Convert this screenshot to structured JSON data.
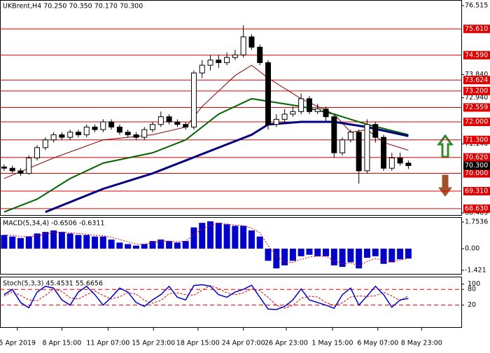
{
  "chart_data": {
    "type": "candlestick",
    "title": "UKBrent,H4  70.250 70.350 70.170 70.300",
    "xlim": [
      -0.5,
      55.5
    ],
    "xticks": [
      {
        "value": 1.6,
        "label": "5 Apr 2019"
      },
      {
        "value": 7,
        "label": "8 Apr 15:00"
      },
      {
        "value": 12.6,
        "label": "11 Apr 07:00"
      },
      {
        "value": 18.1,
        "label": "15 Apr 23:00"
      },
      {
        "value": 23.5,
        "label": "18 Apr 15:00"
      },
      {
        "value": 29,
        "label": "24 Apr 07:00"
      },
      {
        "value": 34.2,
        "label": "26 Apr 23:00"
      },
      {
        "value": 39.8,
        "label": "1 May 15:00"
      },
      {
        "value": 45.3,
        "label": "6 May 07:00"
      },
      {
        "value": 50.6,
        "label": "8 May 23:00"
      }
    ],
    "ylim": [
      68.465,
      76.515
    ],
    "yticks": [
      76.515,
      {
        "value": 73.84,
        "label": "73.840"
      },
      {
        "value": 72.94,
        "label": "72.940"
      },
      {
        "value": 71.14,
        "label": "71.140"
      },
      68.465
    ],
    "levels_color": "#e00000",
    "levels": [
      {
        "value": 75.61,
        "label": "75.610"
      },
      {
        "value": 74.59,
        "label": "74.590"
      },
      73.624,
      {
        "value": 73.2,
        "label": "73.200"
      },
      72.559,
      {
        "value": 72.0,
        "label": "72.000"
      },
      {
        "value": 71.3,
        "label": "71.300"
      },
      {
        "value": 70.62,
        "label": "70.620"
      },
      {
        "value": 70.0,
        "label": "70.000"
      },
      {
        "value": 69.31,
        "label": "69.310"
      },
      {
        "value": 68.63,
        "label": "68.630"
      }
    ],
    "last_price": {
      "value": 70.3,
      "label": "70.300"
    },
    "candles": {
      "open": [
        70.25,
        70.2,
        70.1,
        70.0,
        70.6,
        71.0,
        71.3,
        71.5,
        71.4,
        71.6,
        71.5,
        71.8,
        71.7,
        72.0,
        71.8,
        71.6,
        71.5,
        71.4,
        71.7,
        71.9,
        72.2,
        72.0,
        71.9,
        71.8,
        73.9,
        74.2,
        74.4,
        74.3,
        74.5,
        74.6,
        75.3,
        74.9,
        74.3,
        71.9,
        72.1,
        72.3,
        72.4,
        72.9,
        72.4,
        72.5,
        72.2,
        70.8,
        71.3,
        71.6,
        70.1,
        71.9,
        71.4,
        70.2,
        70.6,
        70.4
      ],
      "high": [
        70.35,
        70.3,
        70.2,
        70.7,
        71.1,
        71.4,
        71.6,
        71.6,
        71.7,
        71.7,
        71.9,
        71.9,
        72.1,
        72.1,
        71.9,
        71.7,
        71.6,
        71.8,
        72.0,
        72.4,
        72.3,
        72.1,
        72.0,
        74.0,
        74.4,
        74.6,
        74.6,
        74.7,
        74.8,
        75.75,
        75.4,
        75.0,
        74.4,
        72.3,
        72.5,
        72.6,
        73.1,
        73.0,
        72.7,
        72.6,
        72.3,
        71.4,
        71.7,
        71.7,
        72.1,
        72.0,
        71.5,
        70.8,
        70.8,
        70.5
      ],
      "low": [
        70.1,
        70.0,
        69.9,
        69.95,
        70.5,
        70.9,
        71.2,
        71.3,
        71.3,
        71.4,
        71.4,
        71.6,
        71.6,
        71.7,
        71.5,
        71.4,
        71.3,
        71.3,
        71.6,
        71.8,
        71.9,
        71.8,
        71.7,
        71.7,
        73.7,
        74.0,
        74.1,
        74.2,
        74.4,
        74.5,
        74.8,
        74.2,
        71.7,
        71.8,
        72.0,
        72.2,
        72.3,
        72.3,
        72.3,
        72.0,
        70.6,
        70.7,
        71.2,
        69.6,
        70.0,
        71.2,
        70.1,
        70.1,
        70.3,
        70.17
      ],
      "close": [
        70.2,
        70.1,
        70.0,
        70.6,
        71.0,
        71.3,
        71.5,
        71.4,
        71.6,
        71.5,
        71.8,
        71.7,
        72.0,
        71.8,
        71.6,
        71.5,
        71.4,
        71.7,
        71.9,
        72.2,
        72.0,
        71.9,
        71.8,
        73.9,
        74.2,
        74.4,
        74.3,
        74.5,
        74.6,
        75.3,
        74.9,
        74.3,
        71.9,
        72.1,
        72.3,
        72.4,
        72.9,
        72.4,
        72.5,
        72.2,
        70.8,
        71.3,
        71.6,
        70.1,
        71.9,
        71.4,
        70.2,
        70.6,
        70.4,
        70.3
      ]
    },
    "moving_averages": [
      {
        "color": "#8b0000",
        "x": [
          0,
          6,
          12,
          18,
          22,
          24,
          28,
          30,
          32,
          36,
          40,
          42,
          44,
          46,
          49
        ],
        "values": [
          69.8,
          70.6,
          71.3,
          71.5,
          71.8,
          72.6,
          73.8,
          74.2,
          73.7,
          72.9,
          72.3,
          71.6,
          71.7,
          71.2,
          70.9
        ]
      },
      {
        "color": "#006400",
        "x": [
          0,
          4,
          8,
          12,
          18,
          22,
          26,
          30,
          32,
          36,
          40,
          44,
          49
        ],
        "values": [
          68.5,
          69.0,
          69.8,
          70.4,
          70.8,
          71.3,
          72.3,
          72.9,
          72.8,
          72.6,
          72.3,
          71.9,
          71.5
        ]
      },
      {
        "color": "#000080",
        "x": [
          5,
          12,
          18,
          22,
          26,
          30,
          32,
          36,
          40,
          44,
          49
        ],
        "values": [
          68.5,
          69.4,
          70.0,
          70.5,
          71.0,
          71.5,
          71.9,
          72.0,
          72.0,
          71.8,
          71.45
        ]
      }
    ],
    "macd": {
      "title": "MACD(5,34,4) -0.6506 -0.6311",
      "ylim": [
        -1.66,
        2.03
      ],
      "yticks": [
        1.7536,
        {
          "value": 0,
          "label": "0.00"
        },
        -1.421
      ],
      "color": "#0000cc",
      "signal_color": "#e00000",
      "histogram": [
        0.9,
        0.8,
        0.7,
        0.8,
        1.0,
        1.1,
        1.2,
        1.1,
        1.0,
        0.9,
        0.9,
        0.8,
        0.8,
        0.6,
        0.4,
        0.3,
        0.2,
        0.3,
        0.5,
        0.6,
        0.5,
        0.4,
        0.5,
        1.4,
        1.7,
        1.8,
        1.7,
        1.6,
        1.5,
        1.5,
        1.2,
        0.8,
        -0.8,
        -1.3,
        -1.1,
        -0.8,
        -0.5,
        -0.4,
        -0.5,
        -0.5,
        -1.1,
        -1.2,
        -0.9,
        -1.3,
        -0.6,
        -0.5,
        -1.0,
        -0.9,
        -0.7,
        -0.6506
      ],
      "signal": [
        0.9,
        0.88,
        0.8,
        0.8,
        0.85,
        0.95,
        1.05,
        1.1,
        1.05,
        1.0,
        0.95,
        0.88,
        0.85,
        0.75,
        0.6,
        0.45,
        0.3,
        0.3,
        0.4,
        0.5,
        0.5,
        0.45,
        0.5,
        0.9,
        1.3,
        1.55,
        1.65,
        1.62,
        1.55,
        1.52,
        1.35,
        1.05,
        0.2,
        -0.5,
        -0.9,
        -0.9,
        -0.7,
        -0.55,
        -0.5,
        -0.5,
        -0.8,
        -1.0,
        -0.95,
        -1.1,
        -0.85,
        -0.65,
        -0.8,
        -0.85,
        -0.75,
        -0.6311
      ]
    },
    "stoch": {
      "title": "Stoch(5,3,3) 45.4531 55.6656",
      "ylim": [
        -5,
        110
      ],
      "yticks": [
        100,
        80,
        20
      ],
      "levels": [
        80,
        20
      ],
      "color": "#0000cc",
      "signal_color": "#e00000",
      "main": [
        60,
        80,
        30,
        10,
        70,
        92,
        85,
        40,
        20,
        70,
        92,
        60,
        20,
        50,
        85,
        70,
        30,
        15,
        40,
        60,
        92,
        50,
        40,
        95,
        98,
        92,
        60,
        50,
        70,
        80,
        96,
        50,
        5,
        3,
        15,
        40,
        82,
        40,
        30,
        20,
        8,
        60,
        85,
        20,
        55,
        92,
        60,
        12,
        40,
        45.4531
      ],
      "signal": [
        55,
        70,
        57,
        40,
        37,
        57,
        82,
        72,
        48,
        43,
        60,
        74,
        57,
        43,
        52,
        68,
        62,
        38,
        28,
        38,
        64,
        67,
        60,
        58,
        77,
        95,
        83,
        67,
        60,
        67,
        82,
        75,
        50,
        19,
        8,
        19,
        46,
        54,
        51,
        30,
        19,
        29,
        51,
        55,
        53,
        56,
        69,
        55,
        37,
        55.6656
      ]
    }
  }
}
